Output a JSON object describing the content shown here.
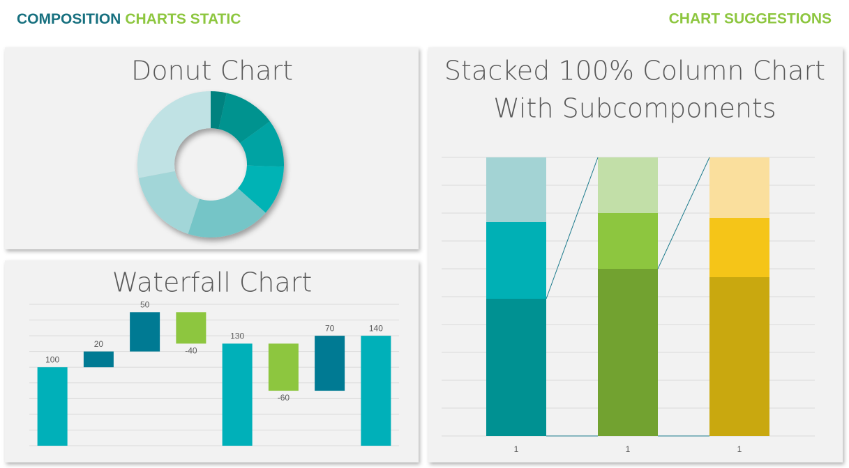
{
  "header": {
    "title_part1": "COMPOSITION",
    "title_part2": "CHARTS STATIC",
    "right": "CHART SUGGESTIONS"
  },
  "chart_data": [
    {
      "type": "donut",
      "title": "Donut Chart",
      "values": [
        3.5,
        11.5,
        10.5,
        11,
        18.5,
        17,
        28
      ],
      "colors": [
        "#00827f",
        "#00938f",
        "#00a3a3",
        "#00b3b5",
        "#74c5c7",
        "#a2d6d8",
        "#c0e2e4"
      ]
    },
    {
      "type": "waterfall",
      "title": "Waterfall Chart",
      "values": [
        100,
        20,
        50,
        -40,
        130,
        -60,
        70,
        140
      ],
      "is_total": [
        true,
        false,
        false,
        false,
        true,
        false,
        false,
        true
      ],
      "colors": [
        "#00b0b9",
        "#007a93",
        "#007a93",
        "#8dc63f",
        "#00b0b9",
        "#8dc63f",
        "#007a93",
        "#00b0b9"
      ],
      "ylim": [
        0,
        180
      ],
      "yticks": [
        0,
        20,
        40,
        60,
        80,
        100,
        120,
        140,
        160,
        180
      ],
      "grid": true
    },
    {
      "type": "stacked100",
      "title": [
        "Stacked 100% Column Chart",
        "With Subcomponents"
      ],
      "categories": [
        "1",
        "1",
        "1"
      ],
      "series": [
        {
          "colors": [
            "#009192",
            "#72a230",
            "#c9a80f"
          ],
          "values": [
            49.25,
            60,
            57
          ]
        },
        {
          "colors": [
            "#00b0b5",
            "#8dc63f",
            "#f5c518"
          ],
          "values": [
            27.5,
            20,
            21.25
          ]
        },
        {
          "colors": [
            "#a3d3d4",
            "#c2dfa8",
            "#fadf9d"
          ],
          "values": [
            23.25,
            20,
            21.75
          ]
        }
      ],
      "connector_color": "#1b7a8c",
      "ylim": [
        0,
        100
      ],
      "yticks": [
        0,
        10,
        20,
        30,
        40,
        50,
        60,
        70,
        80,
        90,
        100
      ],
      "grid": true
    }
  ]
}
